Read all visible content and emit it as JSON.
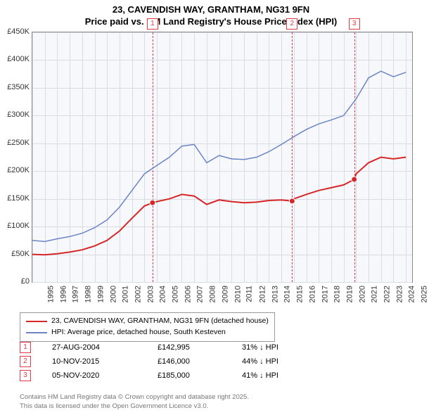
{
  "title_line1": "23, CAVENDISH WAY, GRANTHAM, NG31 9FN",
  "title_line2": "Price paid vs. HM Land Registry's House Price Index (HPI)",
  "chart": {
    "type": "line",
    "background_color": "#f7f8fb",
    "grid_color": "#d9dce4",
    "x_range": [
      1995,
      2025.5
    ],
    "y_range": [
      0,
      450000
    ],
    "y_ticks": [
      0,
      50000,
      100000,
      150000,
      200000,
      250000,
      300000,
      350000,
      400000,
      450000
    ],
    "y_tick_labels": [
      "£0",
      "£50K",
      "£100K",
      "£150K",
      "£200K",
      "£250K",
      "£300K",
      "£350K",
      "£400K",
      "£450K"
    ],
    "x_ticks": [
      1995,
      1996,
      1997,
      1998,
      1999,
      2000,
      2001,
      2002,
      2003,
      2004,
      2005,
      2006,
      2007,
      2008,
      2009,
      2010,
      2011,
      2012,
      2013,
      2014,
      2015,
      2016,
      2017,
      2018,
      2019,
      2020,
      2021,
      2022,
      2023,
      2024,
      2025
    ],
    "series": [
      {
        "name": "price-paid",
        "color": "#d62728",
        "width": 2,
        "data": [
          [
            1995,
            50000
          ],
          [
            1996,
            49000
          ],
          [
            1997,
            51000
          ],
          [
            1998,
            54000
          ],
          [
            1999,
            58000
          ],
          [
            2000,
            65000
          ],
          [
            2001,
            75000
          ],
          [
            2002,
            92000
          ],
          [
            2003,
            115000
          ],
          [
            2004,
            137000
          ],
          [
            2004.65,
            142995
          ],
          [
            2005,
            145000
          ],
          [
            2006,
            150000
          ],
          [
            2007,
            158000
          ],
          [
            2008,
            155000
          ],
          [
            2009,
            140000
          ],
          [
            2010,
            148000
          ],
          [
            2011,
            145000
          ],
          [
            2012,
            143000
          ],
          [
            2013,
            144000
          ],
          [
            2014,
            147000
          ],
          [
            2015,
            148000
          ],
          [
            2015.86,
            146000
          ],
          [
            2016,
            150000
          ],
          [
            2017,
            158000
          ],
          [
            2018,
            165000
          ],
          [
            2019,
            170000
          ],
          [
            2020,
            175000
          ],
          [
            2020.85,
            185000
          ],
          [
            2021,
            195000
          ],
          [
            2022,
            215000
          ],
          [
            2023,
            225000
          ],
          [
            2024,
            222000
          ],
          [
            2025,
            225000
          ]
        ]
      },
      {
        "name": "hpi",
        "color": "#6b84c4",
        "width": 1.5,
        "data": [
          [
            1995,
            75000
          ],
          [
            1996,
            73000
          ],
          [
            1997,
            78000
          ],
          [
            1998,
            82000
          ],
          [
            1999,
            88000
          ],
          [
            2000,
            98000
          ],
          [
            2001,
            112000
          ],
          [
            2002,
            135000
          ],
          [
            2003,
            165000
          ],
          [
            2004,
            195000
          ],
          [
            2005,
            210000
          ],
          [
            2006,
            225000
          ],
          [
            2007,
            245000
          ],
          [
            2008,
            248000
          ],
          [
            2009,
            215000
          ],
          [
            2010,
            228000
          ],
          [
            2011,
            222000
          ],
          [
            2012,
            221000
          ],
          [
            2013,
            225000
          ],
          [
            2014,
            235000
          ],
          [
            2015,
            248000
          ],
          [
            2016,
            262000
          ],
          [
            2017,
            275000
          ],
          [
            2018,
            285000
          ],
          [
            2019,
            292000
          ],
          [
            2020,
            300000
          ],
          [
            2021,
            330000
          ],
          [
            2022,
            368000
          ],
          [
            2023,
            380000
          ],
          [
            2024,
            370000
          ],
          [
            2025,
            378000
          ]
        ]
      }
    ],
    "markers": [
      {
        "n": "1",
        "x": 2004.65,
        "y": 142995
      },
      {
        "n": "2",
        "x": 2015.86,
        "y": 146000
      },
      {
        "n": "3",
        "x": 2020.85,
        "y": 185000
      }
    ]
  },
  "legend": {
    "items": [
      {
        "color": "#d62728",
        "label": "23, CAVENDISH WAY, GRANTHAM, NG31 9FN (detached house)"
      },
      {
        "color": "#6b84c4",
        "label": "HPI: Average price, detached house, South Kesteven"
      }
    ]
  },
  "sales": [
    {
      "n": "1",
      "date": "27-AUG-2004",
      "price": "£142,995",
      "diff": "31% ↓ HPI"
    },
    {
      "n": "2",
      "date": "10-NOV-2015",
      "price": "£146,000",
      "diff": "44% ↓ HPI"
    },
    {
      "n": "3",
      "date": "05-NOV-2020",
      "price": "£185,000",
      "diff": "41% ↓ HPI"
    }
  ],
  "footer_line1": "Contains HM Land Registry data © Crown copyright and database right 2025.",
  "footer_line2": "This data is licensed under the Open Government Licence v3.0."
}
